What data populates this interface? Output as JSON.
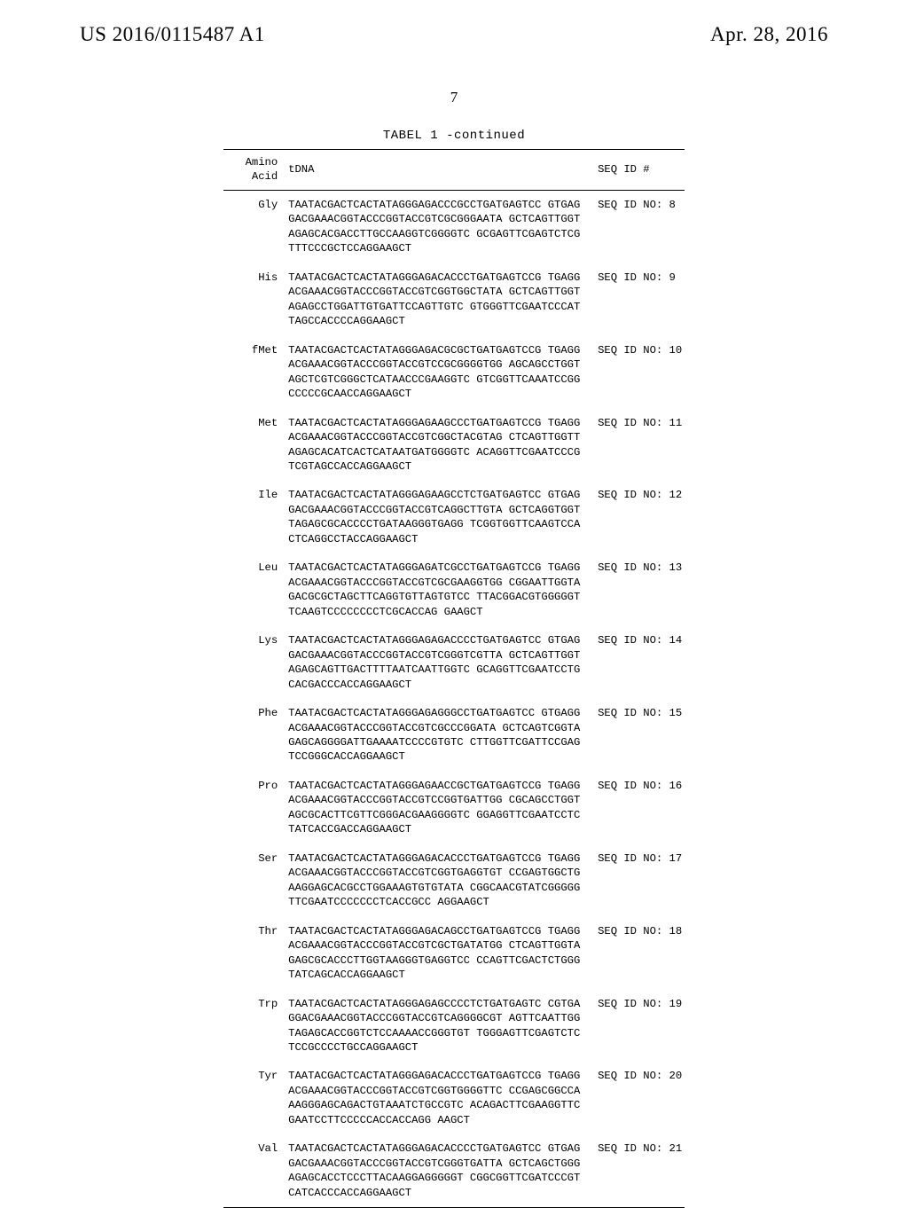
{
  "header": {
    "left": "US 2016/0115487 A1",
    "right": "Apr. 28, 2016"
  },
  "page_number": "7",
  "table": {
    "caption": "TABEL 1 -continued",
    "columns": {
      "aa_top": "Amino",
      "aa_bottom": "Acid",
      "tdna": "tDNA",
      "seqid": "SEQ ID #"
    },
    "rows": [
      {
        "aa": "Gly",
        "seq": "TAATACGACTCACTATAGGGAGACCCGCCTGATGAGTCC GTGAGGACGAAACGGTACCCGGTACCGTCGCGGGAATA GCTCAGTTGGTAGAGCACGACCTTGCCAAGGTCGGGGTC GCGAGTTCGAGTCTCGTTTCCCGCTCCAGGAAGCT",
        "id": "SEQ ID NO: 8"
      },
      {
        "aa": "His",
        "seq": "TAATACGACTCACTATAGGGAGACACCCTGATGAGTCCG TGAGGACGAAACGGTACCCGGTACCGTCGGTGGCTATA GCTCAGTTGGTAGAGCCTGGATTGTGATTCCAGTTGTC GTGGGTTCGAATCCCATTAGCCACCCCAGGAAGCT",
        "id": "SEQ ID NO: 9"
      },
      {
        "aa": "fMet",
        "seq": "TAATACGACTCACTATAGGGAGACGCGCTGATGAGTCCG TGAGGACGAAACGGTACCCGGTACCGTCCGCGGGGTGG AGCAGCCTGGTAGCTCGTCGGGCTCATAACCCGAAGGTC GTCGGTTCAAATCCGGCCCCCGCAACCAGGAAGCT",
        "id": "SEQ ID NO: 10"
      },
      {
        "aa": "Met",
        "seq": "TAATACGACTCACTATAGGGAGAAGCCCTGATGAGTCCG TGAGGACGAAACGGTACCCGGTACCGTCGGCTACGTAG CTCAGTTGGTTAGAGCACATCACTCATAATGATGGGGTC ACAGGTTCGAATCCCGTCGTAGCCACCAGGAAGCT",
        "id": "SEQ ID NO: 11"
      },
      {
        "aa": "Ile",
        "seq": "TAATACGACTCACTATAGGGAGAAGCCTCTGATGAGTCC GTGAGGACGAAACGGTACCCGGTACCGTCAGGCTTGTA GCTCAGGTGGTTAGAGCGCACCCCTGATAAGGGTGAGG TCGGTGGTTCAAGTCCACTCAGGCCTACCAGGAAGCT",
        "id": "SEQ ID NO: 12"
      },
      {
        "aa": "Leu",
        "seq": "TAATACGACTCACTATAGGGAGATCGCCTGATGAGTCCG TGAGGACGAAACGGTACCCGGTACCGTCGCGAAGGTGG CGGAATTGGTAGACGCGCTAGCTTCAGGTGTTAGTGTCC TTACGGACGTGGGGGTTCAAGTCCCCCCCCTCGCACCAG GAAGCT",
        "id": "SEQ ID NO: 13"
      },
      {
        "aa": "Lys",
        "seq": "TAATACGACTCACTATAGGGAGAGACCCCTGATGAGTCC GTGAGGACGAAACGGTACCCGGTACCGTCGGGTCGTTA GCTCAGTTGGTAGAGCAGTTGACTTTTAATCAATTGGTC GCAGGTTCGAATCCTGCACGACCCACCAGGAAGCT",
        "id": "SEQ ID NO: 14"
      },
      {
        "aa": "Phe",
        "seq": "TAATACGACTCACTATAGGGAGAGGGCCTGATGAGTCC GTGAGGACGAAACGGTACCCGGTACCGTCGCCCGGATA GCTCAGTCGGTAGAGCAGGGGATTGAAAATCCCCGTGTC CTTGGTTCGATTCCGAGTCCGGGCACCAGGAAGCT",
        "id": "SEQ ID NO: 15"
      },
      {
        "aa": "Pro",
        "seq": "TAATACGACTCACTATAGGGAGAACCGCTGATGAGTCCG TGAGGACGAAACGGTACCCGGTACCGTCCGGTGATTGG CGCAGCCTGGTAGCGCACTTCGTTCGGGACGAAGGGGTC GGAGGTTCGAATCCTCTATCACCGACCAGGAAGCT",
        "id": "SEQ ID NO: 16"
      },
      {
        "aa": "Ser",
        "seq": "TAATACGACTCACTATAGGGAGACACCCTGATGAGTCCG TGAGGACGAAACGGTACCCGGTACCGTCGGTGAGGTGT CCGAGTGGCTGAAGGAGCACGCCTGGAAAGTGTGTATA CGGCAACGTATCGGGGGTTCGAATCCCCCCCTCACCGCC AGGAAGCT",
        "id": "SEQ ID NO: 17"
      },
      {
        "aa": "Thr",
        "seq": "TAATACGACTCACTATAGGGAGACAGCCTGATGAGTCCG TGAGGACGAAACGGTACCCGGTACCGTCGCTGATATGG CTCAGTTGGTAGAGCGCACCCTTGGTAAGGGTGAGGTCC CCAGTTCGACTCTGGGTATCAGCACCAGGAAGCT",
        "id": "SEQ ID NO: 18"
      },
      {
        "aa": "Trp",
        "seq": "TAATACGACTCACTATAGGGAGAGCCCCTCTGATGAGTC CGTGAGGACGAAACGGTACCCGGTACCGTCAGGGGCGT AGTTCAATTGGTAGAGCACCGGTCTCCAAAACCGGGTGT TGGGAGTTCGAGTCTCTCCGCCCCTGCCAGGAAGCT",
        "id": "SEQ ID NO: 19"
      },
      {
        "aa": "Tyr",
        "seq": "TAATACGACTCACTATAGGGAGACACCCTGATGAGTCCG TGAGGACGAAACGGTACCCGGTACCGTCGGTGGGGTTC CCGAGCGGCCAAAGGGAGCAGACTGTAAATCTGCCGTC ACAGACTTCGAAGGTTCGAATCCTTCCCCCACCACCAGG AAGCT",
        "id": "SEQ ID NO: 20"
      },
      {
        "aa": "Val",
        "seq": "TAATACGACTCACTATAGGGAGACACCCCTGATGAGTCC GTGAGGACGAAACGGTACCCGGTACCGTCGGGTGATTA GCTCAGCTGGGAGAGCACCTCCCTTACAAGGAGGGGGT CGGCGGTTCGATCCCGTCATCACCCACCAGGAAGCT",
        "id": "SEQ ID NO: 21"
      }
    ]
  }
}
